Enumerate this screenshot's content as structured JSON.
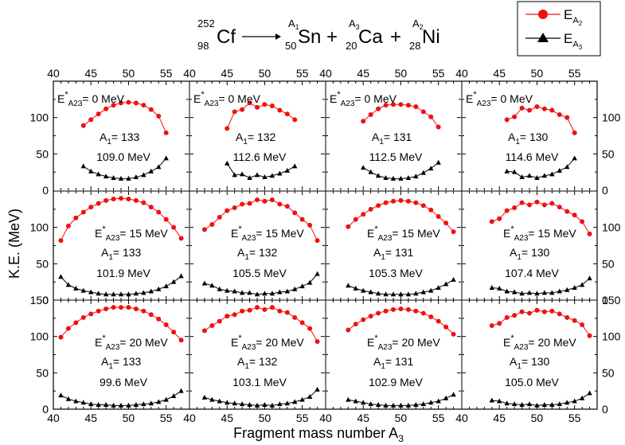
{
  "reaction": {
    "target_mass": "252",
    "target_charge": "98",
    "target": "Cf",
    "p1_mass": "A",
    "p1_mass_sub": "1",
    "p1_charge": "50",
    "p1": "Sn",
    "p2_mass": "A",
    "p2_mass_sub": "3",
    "p2_charge": "20",
    "p2": "Ca",
    "p3_mass": "A",
    "p3_mass_sub": "2",
    "p3_charge": "28",
    "p3": "Ni",
    "plus": "+"
  },
  "legend": {
    "series": [
      {
        "label": "E",
        "sub": "A",
        "subsub": "2",
        "marker": "circle"
      },
      {
        "label": "E",
        "sub": "A",
        "subsub": "3",
        "marker": "triangle"
      }
    ]
  },
  "axes": {
    "ylabel": "K.E. (MeV)",
    "xlabel": "Fragment mass number A",
    "xlabel_sub": "3"
  },
  "colors": {
    "series_red": "#ee1111",
    "series_black": "#000000"
  },
  "chart_data": {
    "type": "scatter",
    "layout": "grid 3 rows x 4 columns",
    "xlim": [
      40,
      58
    ],
    "ylim": [
      0,
      150
    ],
    "xticks": [
      40,
      45,
      50,
      55
    ],
    "yticks": [
      0,
      50,
      100,
      150
    ],
    "panels": [
      {
        "row": 0,
        "col": 0,
        "estar": "0",
        "a1": "133",
        "q": "109.0 MeV",
        "red_x": [
          44,
          45,
          46,
          47,
          48,
          49,
          50,
          51,
          52,
          53,
          54,
          55
        ],
        "red_y": [
          89,
          97,
          105,
          112,
          117,
          120,
          121,
          120,
          117,
          111,
          102,
          79
        ],
        "black_x": [
          44,
          45,
          46,
          47,
          48,
          49,
          50,
          51,
          52,
          53,
          54,
          55
        ],
        "black_y": [
          33,
          26,
          22,
          19,
          17,
          16,
          16,
          18,
          21,
          26,
          32,
          44
        ]
      },
      {
        "row": 0,
        "col": 1,
        "estar": "0",
        "a1": "132",
        "q": "112.6 MeV",
        "red_x": [
          45,
          46,
          47,
          48,
          49,
          50,
          51,
          52,
          53,
          54
        ],
        "red_y": [
          85,
          108,
          111,
          120,
          114,
          118,
          116,
          110,
          105,
          97
        ],
        "black_x": [
          45,
          46,
          47,
          48,
          49,
          50,
          51,
          52,
          53,
          54
        ],
        "black_y": [
          37,
          21,
          22,
          17,
          21,
          18,
          20,
          23,
          27,
          33
        ]
      },
      {
        "row": 0,
        "col": 2,
        "estar": "0",
        "a1": "131",
        "q": "112.5 MeV",
        "red_x": [
          45,
          46,
          47,
          48,
          49,
          50,
          51,
          52,
          53,
          54,
          55
        ],
        "red_y": [
          95,
          104,
          112,
          117,
          118,
          118,
          117,
          115,
          108,
          101,
          87
        ],
        "black_x": [
          45,
          46,
          47,
          48,
          49,
          50,
          51,
          52,
          53,
          54,
          55
        ],
        "black_y": [
          31,
          25,
          20,
          17,
          16,
          16,
          17,
          19,
          24,
          30,
          38
        ]
      },
      {
        "row": 0,
        "col": 3,
        "estar": "0",
        "a1": "130",
        "q": "114.6 MeV",
        "red_x": [
          46,
          47,
          48,
          49,
          50,
          51,
          52,
          53,
          54,
          55
        ],
        "red_y": [
          97,
          101,
          113,
          110,
          115,
          112,
          110,
          104,
          100,
          79
        ],
        "black_x": [
          46,
          47,
          48,
          49,
          50,
          51,
          52,
          53,
          54,
          55
        ],
        "black_y": [
          26,
          25,
          18,
          20,
          17,
          20,
          22,
          27,
          32,
          44
        ]
      },
      {
        "row": 1,
        "col": 0,
        "estar": "15",
        "a1": "133",
        "q": "101.9 MeV",
        "red_x": [
          41,
          42,
          43,
          44,
          45,
          46,
          47,
          48,
          49,
          50,
          51,
          52,
          53,
          54,
          55,
          56,
          57
        ],
        "red_y": [
          82,
          102,
          113,
          121,
          128,
          133,
          137,
          139,
          140,
          139,
          137,
          134,
          128,
          121,
          111,
          100,
          85
        ],
        "black_x": [
          41,
          42,
          43,
          44,
          45,
          46,
          47,
          48,
          49,
          50,
          51,
          52,
          53,
          54,
          55,
          56,
          57
        ],
        "black_y": [
          32,
          21,
          16,
          13,
          11,
          9,
          8,
          8,
          8,
          8,
          9,
          10,
          12,
          15,
          19,
          25,
          33
        ]
      },
      {
        "row": 1,
        "col": 1,
        "estar": "15",
        "a1": "132",
        "q": "105.5 MeV",
        "red_x": [
          42,
          43,
          44,
          45,
          46,
          47,
          48,
          49,
          50,
          51,
          52,
          53,
          54,
          55,
          56,
          57
        ],
        "red_y": [
          97,
          104,
          114,
          123,
          127,
          132,
          133,
          138,
          136,
          138,
          132,
          129,
          120,
          111,
          103,
          82
        ],
        "black_x": [
          42,
          43,
          44,
          45,
          46,
          47,
          48,
          49,
          50,
          51,
          52,
          53,
          54,
          55,
          56,
          57
        ],
        "black_y": [
          23,
          20,
          15,
          13,
          12,
          10,
          10,
          8,
          9,
          9,
          11,
          12,
          15,
          19,
          24,
          36
        ]
      },
      {
        "row": 1,
        "col": 2,
        "estar": "15",
        "a1": "131",
        "q": "105.3 MeV",
        "red_x": [
          43,
          44,
          45,
          46,
          47,
          48,
          49,
          50,
          51,
          52,
          53,
          54,
          55,
          56,
          57
        ],
        "red_y": [
          101,
          111,
          118,
          125,
          130,
          134,
          136,
          137,
          136,
          134,
          130,
          124,
          115,
          106,
          94
        ],
        "black_x": [
          43,
          44,
          45,
          46,
          47,
          48,
          49,
          50,
          51,
          52,
          53,
          54,
          55,
          56,
          57
        ],
        "black_y": [
          20,
          16,
          13,
          11,
          9,
          8,
          8,
          8,
          8,
          9,
          11,
          13,
          17,
          22,
          28
        ]
      },
      {
        "row": 1,
        "col": 3,
        "estar": "15",
        "a1": "130",
        "q": "107.4 MeV",
        "red_x": [
          44,
          45,
          46,
          47,
          48,
          49,
          50,
          51,
          52,
          53,
          54,
          55,
          56,
          57
        ],
        "red_y": [
          108,
          112,
          123,
          127,
          134,
          131,
          135,
          131,
          133,
          128,
          122,
          117,
          108,
          91
        ],
        "black_x": [
          44,
          45,
          46,
          47,
          48,
          49,
          50,
          51,
          52,
          53,
          54,
          55,
          56,
          57
        ],
        "black_y": [
          17,
          16,
          12,
          11,
          9,
          10,
          9,
          10,
          10,
          12,
          14,
          17,
          21,
          30
        ]
      },
      {
        "row": 2,
        "col": 0,
        "estar": "20",
        "a1": "133",
        "q": "99.6 MeV",
        "red_x": [
          41,
          42,
          43,
          44,
          45,
          46,
          47,
          48,
          49,
          50,
          51,
          52,
          53,
          54,
          55,
          56,
          57
        ],
        "red_y": [
          99,
          111,
          119,
          126,
          131,
          135,
          138,
          140,
          140,
          140,
          138,
          135,
          130,
          124,
          116,
          106,
          95
        ],
        "black_x": [
          41,
          42,
          43,
          44,
          45,
          46,
          47,
          48,
          49,
          50,
          51,
          52,
          53,
          54,
          55,
          56,
          57
        ],
        "black_y": [
          19,
          14,
          11,
          9,
          7,
          6,
          6,
          5,
          5,
          5,
          6,
          7,
          8,
          10,
          13,
          18,
          25
        ]
      },
      {
        "row": 2,
        "col": 1,
        "estar": "20",
        "a1": "132",
        "q": "103.1 MeV",
        "red_x": [
          42,
          43,
          44,
          45,
          46,
          47,
          48,
          49,
          50,
          51,
          52,
          53,
          54,
          55,
          56,
          57
        ],
        "red_y": [
          108,
          115,
          121,
          128,
          130,
          135,
          136,
          140,
          137,
          140,
          135,
          133,
          126,
          119,
          111,
          93
        ],
        "black_x": [
          42,
          43,
          44,
          45,
          46,
          47,
          48,
          49,
          50,
          51,
          52,
          53,
          54,
          55,
          56,
          57
        ],
        "black_y": [
          16,
          13,
          11,
          9,
          8,
          7,
          6,
          5,
          6,
          5,
          7,
          8,
          10,
          13,
          17,
          27
        ]
      },
      {
        "row": 2,
        "col": 2,
        "estar": "20",
        "a1": "131",
        "q": "102.9 MeV",
        "red_x": [
          43,
          44,
          45,
          46,
          47,
          48,
          49,
          50,
          51,
          52,
          53,
          54,
          55,
          56,
          57
        ],
        "red_y": [
          109,
          117,
          123,
          128,
          132,
          135,
          137,
          138,
          137,
          135,
          132,
          127,
          121,
          113,
          103
        ],
        "black_x": [
          43,
          44,
          45,
          46,
          47,
          48,
          49,
          50,
          51,
          52,
          53,
          54,
          55,
          56,
          57
        ],
        "black_y": [
          13,
          11,
          9,
          7,
          6,
          5,
          5,
          5,
          5,
          6,
          7,
          9,
          11,
          15,
          20
        ]
      },
      {
        "row": 2,
        "col": 3,
        "estar": "20",
        "a1": "130",
        "q": "105.0 MeV",
        "red_x": [
          44,
          45,
          46,
          47,
          48,
          49,
          50,
          51,
          52,
          53,
          54,
          55,
          56,
          57
        ],
        "red_y": [
          115,
          118,
          126,
          129,
          134,
          132,
          136,
          134,
          135,
          131,
          126,
          122,
          116,
          101
        ],
        "black_x": [
          44,
          45,
          46,
          47,
          48,
          49,
          50,
          51,
          52,
          53,
          54,
          55,
          56,
          57
        ],
        "black_y": [
          12,
          11,
          8,
          7,
          6,
          7,
          5,
          6,
          6,
          7,
          9,
          11,
          15,
          22
        ]
      }
    ]
  }
}
